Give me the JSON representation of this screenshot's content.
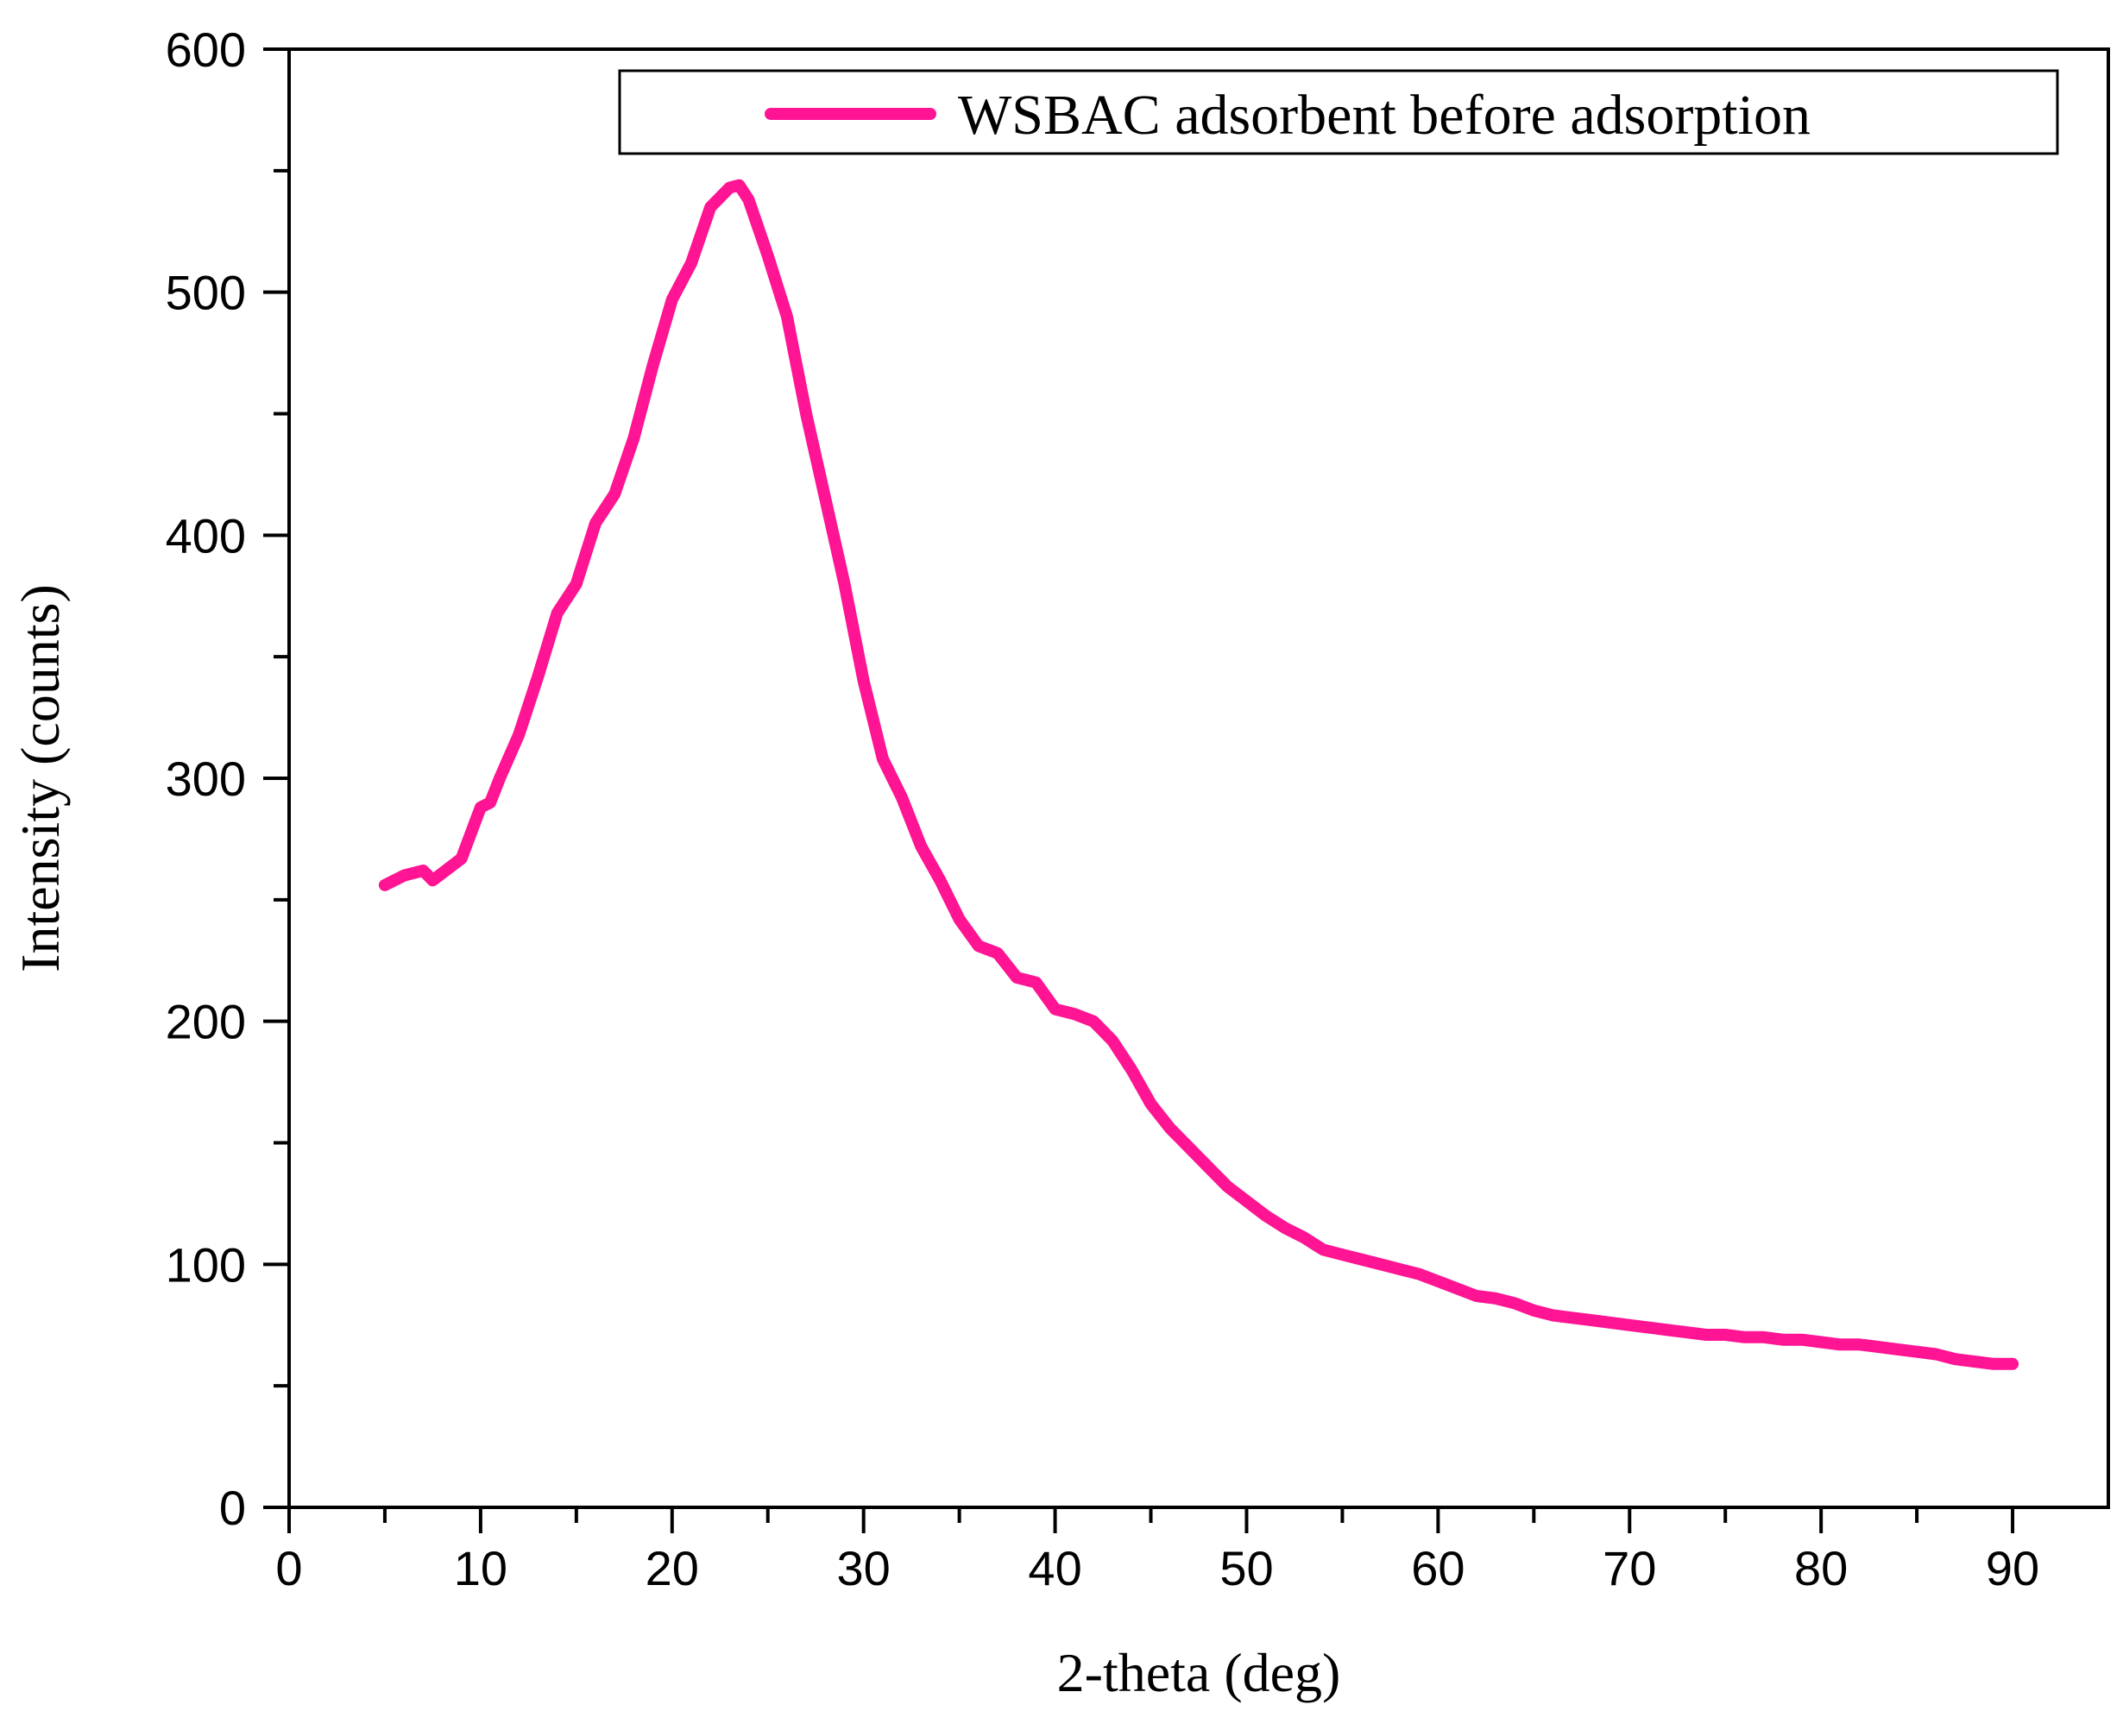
{
  "chart_data": {
    "type": "line",
    "title": "",
    "xlabel": "2-theta (deg)",
    "ylabel": "Intensity (counts)",
    "xlim": [
      0,
      95
    ],
    "ylim": [
      0,
      600
    ],
    "x_ticks": [
      "0",
      "10",
      "20",
      "30",
      "40",
      "50",
      "60",
      "70",
      "80",
      "90"
    ],
    "y_ticks": [
      "0",
      "100",
      "200",
      "300",
      "400",
      "500",
      "600"
    ],
    "grid": false,
    "legend_position": "top-right",
    "series": [
      {
        "name": "WSBAC adsorbent before adsorption",
        "color": "#ff1493",
        "x": [
          5,
          6,
          7,
          7.5,
          8,
          9,
          10,
          10.5,
          11,
          12,
          13,
          14,
          15,
          16,
          17,
          18,
          19,
          20,
          21,
          22,
          23,
          23.5,
          24,
          25,
          26,
          27,
          28,
          29,
          30,
          31,
          32,
          33,
          34,
          35,
          36,
          37,
          38,
          39,
          40,
          41,
          42,
          43,
          44,
          45,
          46,
          47,
          48,
          49,
          50,
          51,
          52,
          53,
          54,
          55,
          56,
          57,
          58,
          59,
          60,
          61,
          62,
          63,
          64,
          65,
          66,
          67,
          68,
          69,
          70,
          71,
          72,
          73,
          74,
          75,
          76,
          77,
          78,
          79,
          80,
          81,
          82,
          83,
          84,
          85,
          86,
          87,
          88,
          89,
          90
        ],
        "y": [
          256,
          260,
          262,
          258,
          261,
          267,
          288,
          290,
          300,
          318,
          342,
          368,
          380,
          405,
          417,
          440,
          470,
          497,
          512,
          535,
          543,
          544,
          538,
          515,
          490,
          450,
          415,
          380,
          340,
          308,
          292,
          272,
          258,
          242,
          231,
          228,
          218,
          216,
          205,
          203,
          200,
          192,
          180,
          166,
          156,
          148,
          140,
          132,
          126,
          120,
          115,
          111,
          106,
          104,
          102,
          100,
          98,
          96,
          93,
          90,
          87,
          86,
          84,
          81,
          79,
          78,
          77,
          76,
          75,
          74,
          73,
          72,
          71,
          71,
          70,
          70,
          69,
          69,
          68,
          67,
          67,
          66,
          65,
          64,
          63,
          61,
          60,
          59,
          59
        ]
      }
    ]
  }
}
